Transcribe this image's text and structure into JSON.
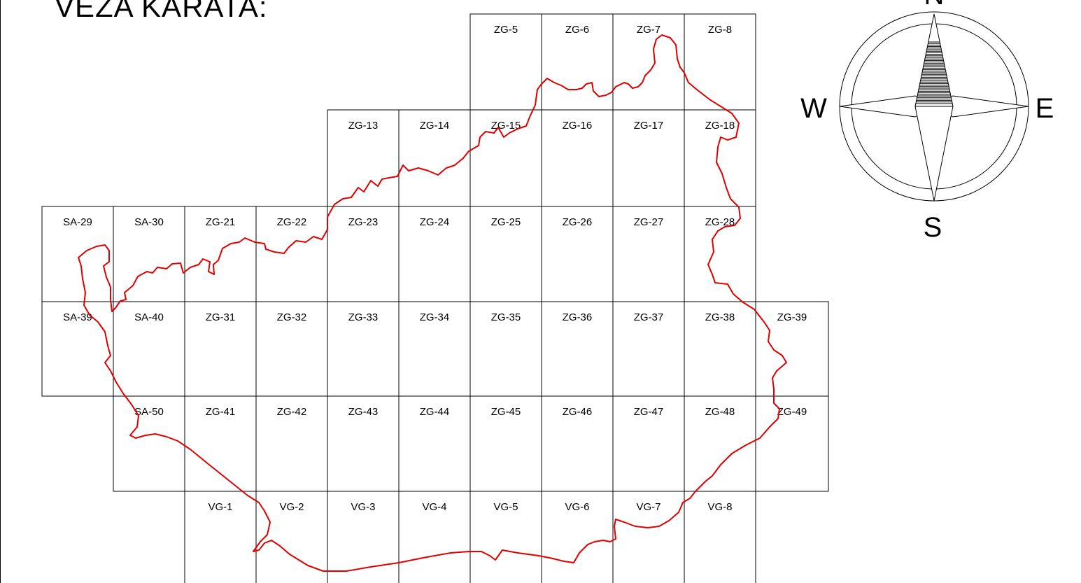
{
  "title": "VEZA KARATA:",
  "compass": {
    "north": "N",
    "south": "S",
    "east": "E",
    "west": "W"
  },
  "boundary_color": "#e00000",
  "sheets": [
    "ZG-5",
    "ZG-6",
    "ZG-7",
    "ZG-8",
    "ZG-13",
    "ZG-14",
    "ZG-15",
    "ZG-16",
    "ZG-17",
    "ZG-18",
    "SA-29",
    "SA-30",
    "ZG-21",
    "ZG-22",
    "ZG-23",
    "ZG-24",
    "ZG-25",
    "ZG-26",
    "ZG-27",
    "ZG-28",
    "SA-39",
    "SA-40",
    "ZG-31",
    "ZG-32",
    "ZG-33",
    "ZG-34",
    "ZG-35",
    "ZG-36",
    "ZG-37",
    "ZG-38",
    "ZG-39",
    "SA-50",
    "ZG-41",
    "ZG-42",
    "ZG-43",
    "ZG-44",
    "ZG-45",
    "ZG-46",
    "ZG-47",
    "ZG-48",
    "ZG-49",
    "VG-1",
    "VG-2",
    "VG-3",
    "VG-4",
    "VG-5",
    "VG-6",
    "VG-7",
    "VG-8"
  ]
}
